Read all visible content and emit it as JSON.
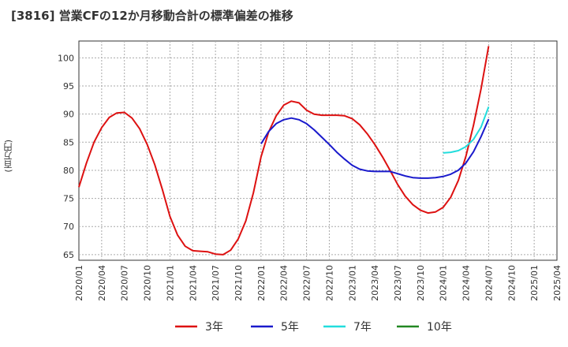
{
  "chart_data": {
    "type": "line",
    "title": "[3816]  営業CFの12か月移動合計の標準偏差の推移",
    "xlabel": "",
    "ylabel": "(百万円)",
    "ylim": [
      64,
      103
    ],
    "yticks": [
      65,
      70,
      75,
      80,
      85,
      90,
      95,
      100
    ],
    "x_ticks": [
      "2020/01",
      "2020/04",
      "2020/07",
      "2020/10",
      "2021/01",
      "2021/04",
      "2021/07",
      "2021/10",
      "2022/01",
      "2022/04",
      "2022/07",
      "2022/10",
      "2023/01",
      "2023/04",
      "2023/07",
      "2023/10",
      "2024/01",
      "2024/04",
      "2024/07",
      "2024/10",
      "2025/01",
      "2025/04"
    ],
    "grid": true,
    "legend_position": "bottom",
    "series": [
      {
        "name": "3年",
        "color": "#dd1111",
        "x": [
          "2020/01",
          "2020/02",
          "2020/03",
          "2020/04",
          "2020/05",
          "2020/06",
          "2020/07",
          "2020/08",
          "2020/09",
          "2020/10",
          "2020/11",
          "2020/12",
          "2021/01",
          "2021/02",
          "2021/03",
          "2021/04",
          "2021/05",
          "2021/06",
          "2021/07",
          "2021/08",
          "2021/09",
          "2021/10",
          "2021/11",
          "2021/12",
          "2022/01",
          "2022/02",
          "2022/03",
          "2022/04",
          "2022/05",
          "2022/06",
          "2022/07",
          "2022/08",
          "2022/09",
          "2022/10",
          "2022/11",
          "2022/12",
          "2023/01",
          "2023/02",
          "2023/03",
          "2023/04",
          "2023/05",
          "2023/06",
          "2023/07",
          "2023/08",
          "2023/09",
          "2023/10",
          "2023/11",
          "2023/12",
          "2024/01",
          "2024/02",
          "2024/03",
          "2024/04",
          "2024/05",
          "2024/06",
          "2024/07"
        ],
        "values": [
          77.0,
          81.3,
          85.0,
          87.6,
          89.4,
          90.2,
          90.3,
          89.3,
          87.4,
          84.6,
          81.0,
          76.6,
          71.8,
          68.5,
          66.5,
          65.7,
          65.6,
          65.5,
          65.1,
          65.0,
          65.8,
          67.8,
          71.0,
          76.0,
          82.4,
          86.8,
          89.7,
          91.6,
          92.3,
          92.0,
          90.7,
          90.0,
          89.8,
          89.8,
          89.8,
          89.7,
          89.2,
          88.1,
          86.5,
          84.6,
          82.4,
          80.0,
          77.5,
          75.4,
          73.9,
          72.9,
          72.4,
          72.6,
          73.4,
          75.2,
          78.2,
          82.5,
          88.0,
          94.5,
          102.1
        ]
      },
      {
        "name": "5年",
        "color": "#1a1acc",
        "x": [
          "2022/01",
          "2022/02",
          "2022/03",
          "2022/04",
          "2022/05",
          "2022/06",
          "2022/07",
          "2022/08",
          "2022/09",
          "2022/10",
          "2022/11",
          "2022/12",
          "2023/01",
          "2023/02",
          "2023/03",
          "2023/04",
          "2023/05",
          "2023/06",
          "2023/07",
          "2023/08",
          "2023/09",
          "2023/10",
          "2023/11",
          "2023/12",
          "2024/01",
          "2024/02",
          "2024/03",
          "2024/04",
          "2024/05",
          "2024/06",
          "2024/07"
        ],
        "values": [
          84.7,
          86.9,
          88.3,
          89.0,
          89.3,
          89.0,
          88.3,
          87.2,
          85.9,
          84.6,
          83.2,
          82.0,
          80.9,
          80.2,
          79.9,
          79.8,
          79.8,
          79.8,
          79.4,
          79.0,
          78.7,
          78.6,
          78.6,
          78.7,
          78.9,
          79.3,
          80.0,
          81.3,
          83.3,
          86.0,
          89.1
        ]
      },
      {
        "name": "7年",
        "color": "#22dddd",
        "x": [
          "2024/01",
          "2024/02",
          "2024/03",
          "2024/04",
          "2024/05",
          "2024/06",
          "2024/07"
        ],
        "values": [
          83.1,
          83.2,
          83.5,
          84.2,
          85.5,
          87.7,
          91.3
        ]
      },
      {
        "name": "10年",
        "color": "#228822",
        "x": [],
        "values": []
      }
    ]
  }
}
